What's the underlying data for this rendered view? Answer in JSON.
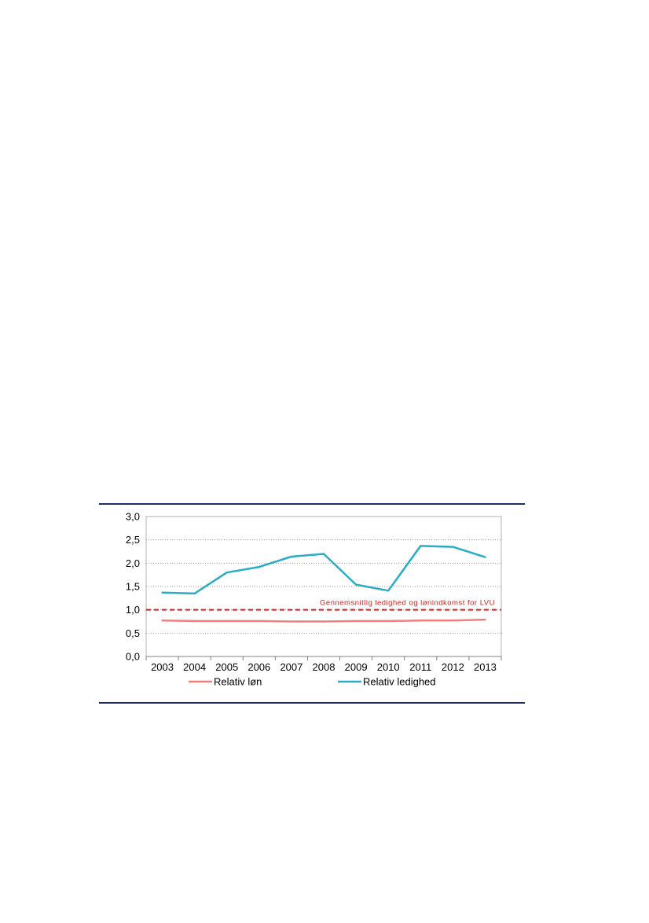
{
  "chart_data": {
    "type": "line",
    "title": "",
    "xlabel": "",
    "ylabel": "",
    "categories": [
      "2003",
      "2004",
      "2005",
      "2006",
      "2007",
      "2008",
      "2009",
      "2010",
      "2011",
      "2012",
      "2013"
    ],
    "ylim": [
      0,
      3.0
    ],
    "y_ticks": [
      "0,0",
      "0,5",
      "1,0",
      "1,5",
      "2,0",
      "2,5",
      "3,0"
    ],
    "grid": "horizontal dotted",
    "legend_position": "bottom",
    "series": [
      {
        "name": "Relativ løn",
        "color": "#f08080",
        "values": [
          0.77,
          0.76,
          0.76,
          0.76,
          0.75,
          0.75,
          0.76,
          0.76,
          0.77,
          0.77,
          0.79
        ]
      },
      {
        "name": "Relativ ledighed",
        "color": "#2aacc4",
        "values": [
          1.37,
          1.35,
          1.8,
          1.92,
          2.14,
          2.2,
          1.54,
          1.41,
          2.37,
          2.35,
          2.13
        ]
      }
    ],
    "reference_line": {
      "value": 1.0,
      "label": "Gennemsnitlig ledighed og lønindkomst for LVU",
      "color": "#d42020"
    }
  }
}
